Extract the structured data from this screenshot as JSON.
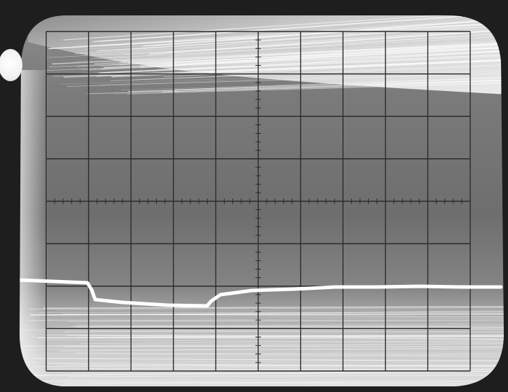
{
  "image": {
    "subject": "oscilloscope-screen-photo",
    "colors": {
      "bezel": "#1e1e1e",
      "screen_light": "#d9d9d9",
      "screen_mid": "#8f8f8f",
      "screen_dark": "#6a6a6a",
      "graticule": "#2b2b2b",
      "trace": "#ffffff"
    },
    "graticule": {
      "major_columns": 10,
      "major_rows": 8
    }
  }
}
